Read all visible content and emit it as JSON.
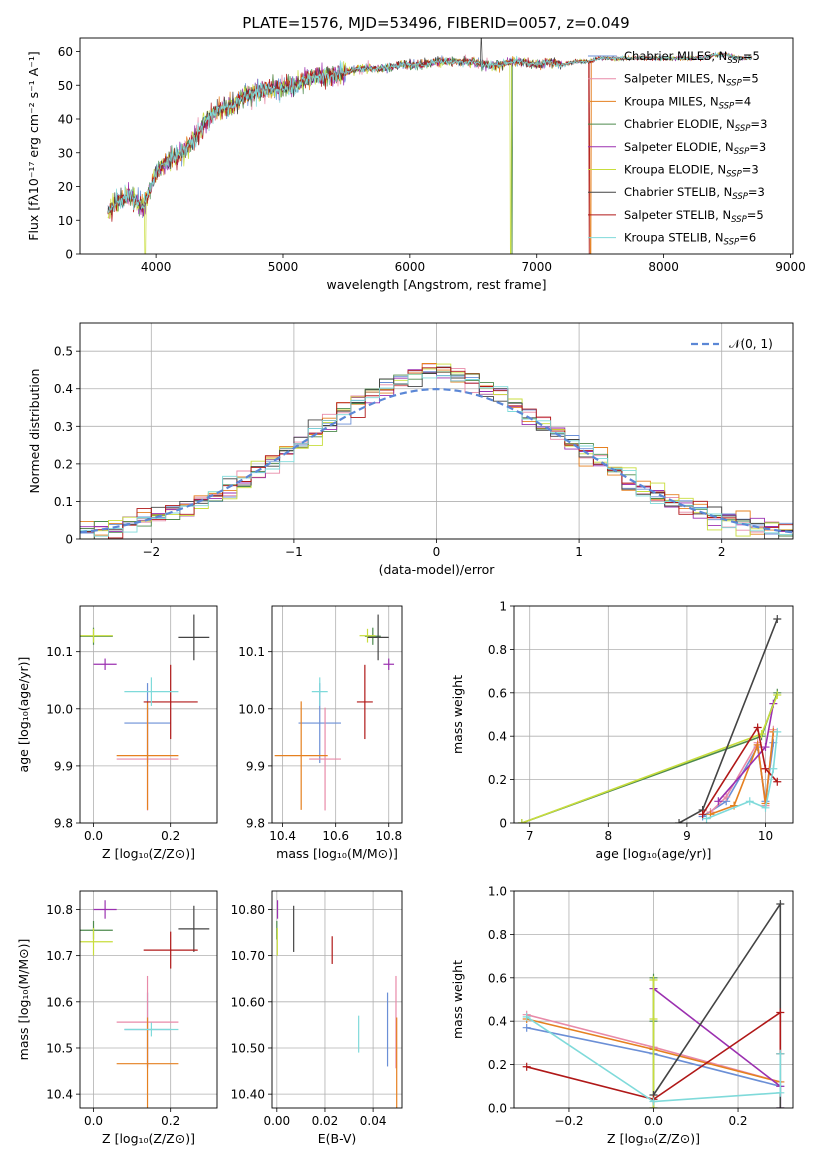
{
  "figure_title": "PLATE=1576, MJD=53496, FIBERID=0057, z=0.049",
  "colors": {
    "Chabrier MILES": "#6b8fd6",
    "Salpeter MILES": "#e88aa8",
    "Kroupa MILES": "#e58020",
    "Chabrier ELODIE": "#4d8a4d",
    "Salpeter ELODIE": "#9b30b0",
    "Kroupa ELODIE": "#c8dd3c",
    "Chabrier STELIB": "#444444",
    "Salpeter STELIB": "#b01818",
    "Kroupa STELIB": "#7fdada",
    "normal": "#5b87d6",
    "grid": "#b0b0b0"
  },
  "chart_data": [
    {
      "id": "spectrum",
      "type": "line",
      "title": "PLATE=1576, MJD=53496, FIBERID=0057, z=0.049",
      "xlabel": "wavelength [Angstrom, rest frame]",
      "ylabel": "Flux [fλ10⁻¹⁷ erg cm⁻² s⁻¹ A⁻¹]",
      "xlim": [
        3400,
        9020
      ],
      "ylim": [
        0,
        64
      ],
      "xticks": [
        4000,
        5000,
        6000,
        7000,
        8000,
        9000
      ],
      "yticks": [
        0,
        10,
        20,
        30,
        40,
        50,
        60
      ],
      "grid": false,
      "legend": "top-right",
      "legend_entries": [
        {
          "name": "Chabrier MILES",
          "nssp": "5"
        },
        {
          "name": "Salpeter MILES",
          "nssp": "5"
        },
        {
          "name": "Kroupa MILES",
          "nssp": "4"
        },
        {
          "name": "Chabrier ELODIE",
          "nssp": "3"
        },
        {
          "name": "Salpeter ELODIE",
          "nssp": "3"
        },
        {
          "name": "Kroupa ELODIE",
          "nssp": "3"
        },
        {
          "name": "Chabrier STELIB",
          "nssp": "3"
        },
        {
          "name": "Salpeter STELIB",
          "nssp": "5"
        },
        {
          "name": "Kroupa STELIB",
          "nssp": "6"
        }
      ],
      "envelope": {
        "x": [
          3620,
          3700,
          3800,
          3900,
          4000,
          4100,
          4200,
          4300,
          4400,
          4500,
          4600,
          4700,
          4800,
          4900,
          5000,
          5100,
          5200,
          5300,
          5400,
          5500,
          5600,
          5700,
          5800,
          5900,
          6000,
          6100,
          6200,
          6300,
          6400,
          6500,
          6600,
          6700,
          6800,
          6900,
          7000,
          7100,
          7200,
          7300,
          7400,
          7500,
          7600,
          7700,
          7800,
          7900,
          8000,
          8100,
          8200,
          8300,
          8400,
          8500,
          8600,
          8700
        ],
        "y": [
          12,
          16,
          17,
          14,
          24,
          28,
          30,
          34,
          40,
          43,
          44,
          47,
          48,
          49,
          49,
          50,
          52,
          53,
          53,
          54,
          55,
          55,
          55,
          56,
          56,
          56,
          57,
          57,
          57,
          57,
          56,
          56,
          57,
          57,
          56,
          57,
          56,
          57,
          57,
          58,
          58,
          58,
          58,
          58,
          58,
          58,
          58,
          58,
          59,
          59,
          58,
          58
        ]
      },
      "dropouts": [
        {
          "x": 3915,
          "series": "Kroupa ELODIE"
        },
        {
          "x": 6795,
          "series": "Kroupa ELODIE"
        },
        {
          "x": 6805,
          "series": "Chabrier ELODIE"
        },
        {
          "x": 7415,
          "series": "Salpeter STELIB"
        },
        {
          "x": 7425,
          "series": "Kroupa MILES"
        }
      ]
    },
    {
      "id": "residuals",
      "type": "line",
      "xlabel": "(data-model)/error",
      "ylabel": "Normed distribution",
      "xlim": [
        -2.5,
        2.5
      ],
      "ylim": [
        0,
        0.575
      ],
      "xticks": [
        -2,
        -1,
        0,
        1,
        2
      ],
      "yticks": [
        0.0,
        0.1,
        0.2,
        0.3,
        0.4,
        0.5
      ],
      "grid": true,
      "legend": "top-right",
      "legend_label": "𝒩(0, 1)",
      "normal": {
        "mean": 0,
        "sigma": 1
      },
      "bin_width": 0.1
    },
    {
      "id": "age_vs_Z",
      "type": "scatter",
      "xlabel": "Z [log₁₀(Z/Z⊙)]",
      "ylabel": "age  [log₁₀(age/yr)]",
      "xlim": [
        -0.035,
        0.32
      ],
      "ylim": [
        9.8,
        10.18
      ],
      "xticks": [
        0.0,
        0.2
      ],
      "yticks": [
        9.8,
        9.9,
        10.0,
        10.1
      ],
      "grid": true,
      "points": [
        {
          "series": "Chabrier MILES",
          "x": 0.14,
          "y": 9.975,
          "xerr": 0.06,
          "yerr": 0.07
        },
        {
          "series": "Salpeter MILES",
          "x": 0.14,
          "y": 9.912,
          "xerr": 0.08,
          "yerr": 0.09
        },
        {
          "series": "Kroupa MILES",
          "x": 0.14,
          "y": 9.918,
          "xerr": 0.08,
          "yerr": 0.095
        },
        {
          "series": "Chabrier ELODIE",
          "x": 0.0,
          "y": 10.127,
          "xerr": 0.05,
          "yerr": 0.015
        },
        {
          "series": "Salpeter ELODIE",
          "x": 0.03,
          "y": 10.078,
          "xerr": 0.03,
          "yerr": 0.01
        },
        {
          "series": "Kroupa ELODIE",
          "x": 0.0,
          "y": 10.128,
          "xerr": 0.05,
          "yerr": 0.012
        },
        {
          "series": "Chabrier STELIB",
          "x": 0.26,
          "y": 10.125,
          "xerr": 0.04,
          "yerr": 0.04
        },
        {
          "series": "Salpeter STELIB",
          "x": 0.2,
          "y": 10.012,
          "xerr": 0.07,
          "yerr": 0.065
        },
        {
          "series": "Kroupa STELIB",
          "x": 0.15,
          "y": 10.03,
          "xerr": 0.07,
          "yerr": 0.025
        }
      ]
    },
    {
      "id": "age_vs_mass",
      "type": "scatter",
      "xlabel": "mass [log₁₀(M/M⊙)]",
      "xlim": [
        10.36,
        10.85
      ],
      "ylim": [
        9.8,
        10.18
      ],
      "xticks": [
        10.4,
        10.6,
        10.8
      ],
      "yticks": [
        9.8,
        9.9,
        10.0,
        10.1
      ],
      "grid": true,
      "points": [
        {
          "series": "Chabrier MILES",
          "x": 10.54,
          "y": 9.975,
          "xerr": 0.08,
          "yerr": 0.07
        },
        {
          "series": "Salpeter MILES",
          "x": 10.56,
          "y": 9.912,
          "xerr": 0.06,
          "yerr": 0.09
        },
        {
          "series": "Kroupa MILES",
          "x": 10.47,
          "y": 9.918,
          "xerr": 0.1,
          "yerr": 0.095
        },
        {
          "series": "Chabrier ELODIE",
          "x": 10.74,
          "y": 10.127,
          "xerr": 0.03,
          "yerr": 0.015
        },
        {
          "series": "Salpeter ELODIE",
          "x": 10.8,
          "y": 10.078,
          "xerr": 0.02,
          "yerr": 0.01
        },
        {
          "series": "Kroupa ELODIE",
          "x": 10.72,
          "y": 10.128,
          "xerr": 0.03,
          "yerr": 0.012
        },
        {
          "series": "Chabrier STELIB",
          "x": 10.76,
          "y": 10.125,
          "xerr": 0.04,
          "yerr": 0.04
        },
        {
          "series": "Salpeter STELIB",
          "x": 10.71,
          "y": 10.012,
          "xerr": 0.03,
          "yerr": 0.065
        },
        {
          "series": "Kroupa STELIB",
          "x": 10.54,
          "y": 10.03,
          "xerr": 0.03,
          "yerr": 0.025
        }
      ]
    },
    {
      "id": "weight_vs_age",
      "type": "line",
      "xlabel": "age  [log₁₀(age/yr)]",
      "ylabel": "mass weight",
      "xlim": [
        6.8,
        10.35
      ],
      "ylim": [
        0,
        1.0
      ],
      "xticks": [
        7,
        8,
        9,
        10
      ],
      "yticks": [
        0.0,
        0.2,
        0.4,
        0.6,
        0.8,
        1.0
      ],
      "grid": true,
      "series": [
        {
          "name": "Chabrier MILES",
          "points": [
            [
              9.2,
              0.03
            ],
            [
              9.5,
              0.1
            ],
            [
              9.9,
              0.35
            ],
            [
              10.0,
              0.1
            ],
            [
              10.1,
              0.37
            ]
          ]
        },
        {
          "name": "Salpeter MILES",
          "points": [
            [
              9.3,
              0.05
            ],
            [
              9.5,
              0.12
            ],
            [
              9.9,
              0.37
            ],
            [
              10.0,
              0.08
            ],
            [
              10.1,
              0.43
            ]
          ]
        },
        {
          "name": "Kroupa MILES",
          "points": [
            [
              9.3,
              0.04
            ],
            [
              9.6,
              0.08
            ],
            [
              9.9,
              0.36
            ],
            [
              10.0,
              0.09
            ],
            [
              10.1,
              0.42
            ]
          ]
        },
        {
          "name": "Chabrier ELODIE",
          "points": [
            [
              6.9,
              0.0
            ],
            [
              9.95,
              0.4
            ],
            [
              10.15,
              0.6
            ]
          ]
        },
        {
          "name": "Salpeter ELODIE",
          "points": [
            [
              9.4,
              0.1
            ],
            [
              10.0,
              0.35
            ],
            [
              10.1,
              0.55
            ]
          ]
        },
        {
          "name": "Kroupa ELODIE",
          "points": [
            [
              6.9,
              0.0
            ],
            [
              9.95,
              0.41
            ],
            [
              10.15,
              0.59
            ]
          ]
        },
        {
          "name": "Chabrier STELIB",
          "points": [
            [
              8.9,
              0.0
            ],
            [
              9.2,
              0.06
            ],
            [
              10.15,
              0.94
            ]
          ]
        },
        {
          "name": "Salpeter STELIB",
          "points": [
            [
              9.2,
              0.04
            ],
            [
              9.9,
              0.44
            ],
            [
              10.0,
              0.25
            ],
            [
              10.15,
              0.19
            ]
          ]
        },
        {
          "name": "Kroupa STELIB",
          "points": [
            [
              9.25,
              0.02
            ],
            [
              9.8,
              0.1
            ],
            [
              10.0,
              0.07
            ],
            [
              10.1,
              0.25
            ],
            [
              10.15,
              0.42
            ]
          ]
        }
      ]
    },
    {
      "id": "mass_vs_Z",
      "type": "scatter",
      "xlabel": "Z [log₁₀(Z/Z⊙)]",
      "ylabel": "mass [log₁₀(M/M⊙)]",
      "xlim": [
        -0.035,
        0.32
      ],
      "ylim": [
        10.37,
        10.84
      ],
      "xticks": [
        0.0,
        0.2
      ],
      "yticks": [
        10.4,
        10.5,
        10.6,
        10.7,
        10.8
      ],
      "grid": true,
      "points": [
        {
          "series": "Chabrier MILES",
          "x": 0.14,
          "y": 10.54,
          "xerr": 0.06,
          "yerr": 0.08
        },
        {
          "series": "Salpeter MILES",
          "x": 0.14,
          "y": 10.556,
          "xerr": 0.08,
          "yerr": 0.1
        },
        {
          "series": "Kroupa MILES",
          "x": 0.14,
          "y": 10.466,
          "xerr": 0.08,
          "yerr": 0.1
        },
        {
          "series": "Chabrier ELODIE",
          "x": 0.0,
          "y": 10.755,
          "xerr": 0.05,
          "yerr": 0.02
        },
        {
          "series": "Salpeter ELODIE",
          "x": 0.03,
          "y": 10.8,
          "xerr": 0.03,
          "yerr": 0.02
        },
        {
          "series": "Kroupa ELODIE",
          "x": 0.0,
          "y": 10.73,
          "xerr": 0.05,
          "yerr": 0.03
        },
        {
          "series": "Chabrier STELIB",
          "x": 0.26,
          "y": 10.758,
          "xerr": 0.04,
          "yerr": 0.05
        },
        {
          "series": "Salpeter STELIB",
          "x": 0.2,
          "y": 10.712,
          "xerr": 0.07,
          "yerr": 0.04
        },
        {
          "series": "Kroupa STELIB",
          "x": 0.15,
          "y": 10.54,
          "xerr": 0.07,
          "yerr": 0.015
        }
      ]
    },
    {
      "id": "mass_vs_ebv",
      "type": "scatter",
      "xlabel": "E(B-V)",
      "xlim": [
        -0.002,
        0.052
      ],
      "ylim": [
        10.37,
        10.84
      ],
      "xticks": [
        0.0,
        0.02,
        0.04
      ],
      "yticks": [
        10.4,
        10.5,
        10.6,
        10.7,
        10.8
      ],
      "grid": true,
      "points": [
        {
          "series": "Chabrier MILES",
          "x": 0.046,
          "y": 10.54,
          "xerr": 0,
          "yerr": 0.08
        },
        {
          "series": "Salpeter MILES",
          "x": 0.0495,
          "y": 10.556,
          "xerr": 0,
          "yerr": 0.1
        },
        {
          "series": "Kroupa MILES",
          "x": 0.0498,
          "y": 10.466,
          "xerr": 0,
          "yerr": 0.1
        },
        {
          "series": "Chabrier ELODIE",
          "x": 0.0,
          "y": 10.755,
          "xerr": 0,
          "yerr": 0.02
        },
        {
          "series": "Salpeter ELODIE",
          "x": 0.0003,
          "y": 10.8,
          "xerr": 0,
          "yerr": 0.02
        },
        {
          "series": "Kroupa ELODIE",
          "x": 0.0002,
          "y": 10.73,
          "xerr": 0,
          "yerr": 0.03
        },
        {
          "series": "Chabrier STELIB",
          "x": 0.007,
          "y": 10.758,
          "xerr": 0,
          "yerr": 0.05
        },
        {
          "series": "Salpeter STELIB",
          "x": 0.023,
          "y": 10.712,
          "xerr": 0,
          "yerr": 0.03
        },
        {
          "series": "Kroupa STELIB",
          "x": 0.034,
          "y": 10.53,
          "xerr": 0,
          "yerr": 0.04
        }
      ]
    },
    {
      "id": "weight_vs_Z",
      "type": "line",
      "xlabel": "Z [log₁₀(Z/Z⊙)]",
      "ylabel": "mass weight",
      "xlim": [
        -0.33,
        0.33
      ],
      "ylim": [
        0,
        1.0
      ],
      "xticks": [
        -0.2,
        0.0,
        0.2
      ],
      "yticks": [
        0.0,
        0.2,
        0.4,
        0.6,
        0.8,
        1.0
      ],
      "grid": true,
      "series": [
        {
          "name": "Chabrier MILES",
          "points": [
            [
              -0.3,
              0.37
            ],
            [
              0.0,
              0.25
            ],
            [
              0.3,
              0.1
            ]
          ]
        },
        {
          "name": "Salpeter MILES",
          "points": [
            [
              -0.3,
              0.43
            ],
            [
              0.0,
              0.28
            ],
            [
              0.3,
              0.12
            ]
          ]
        },
        {
          "name": "Kroupa MILES",
          "points": [
            [
              -0.3,
              0.41
            ],
            [
              0.0,
              0.27
            ],
            [
              0.3,
              0.12
            ]
          ]
        },
        {
          "name": "Chabrier ELODIE",
          "points": [
            [
              0.0,
              0.6
            ],
            [
              0.0,
              0.4
            ],
            [
              0.0,
              0.0
            ]
          ]
        },
        {
          "name": "Salpeter ELODIE",
          "points": [
            [
              0.0,
              0.55
            ],
            [
              0.3,
              0.1
            ],
            [
              0.3,
              0.0
            ]
          ]
        },
        {
          "name": "Kroupa ELODIE",
          "points": [
            [
              0.0,
              0.59
            ],
            [
              0.0,
              0.41
            ],
            [
              0.0,
              0.0
            ]
          ]
        },
        {
          "name": "Chabrier STELIB",
          "points": [
            [
              0.0,
              0.06
            ],
            [
              0.3,
              0.94
            ],
            [
              0.3,
              0.0
            ]
          ]
        },
        {
          "name": "Salpeter STELIB",
          "points": [
            [
              -0.3,
              0.19
            ],
            [
              0.0,
              0.04
            ],
            [
              0.3,
              0.44
            ],
            [
              0.3,
              0.25
            ]
          ]
        },
        {
          "name": "Kroupa STELIB",
          "points": [
            [
              -0.3,
              0.42
            ],
            [
              0.0,
              0.03
            ],
            [
              0.3,
              0.07
            ],
            [
              0.3,
              0.25
            ]
          ]
        }
      ]
    }
  ]
}
